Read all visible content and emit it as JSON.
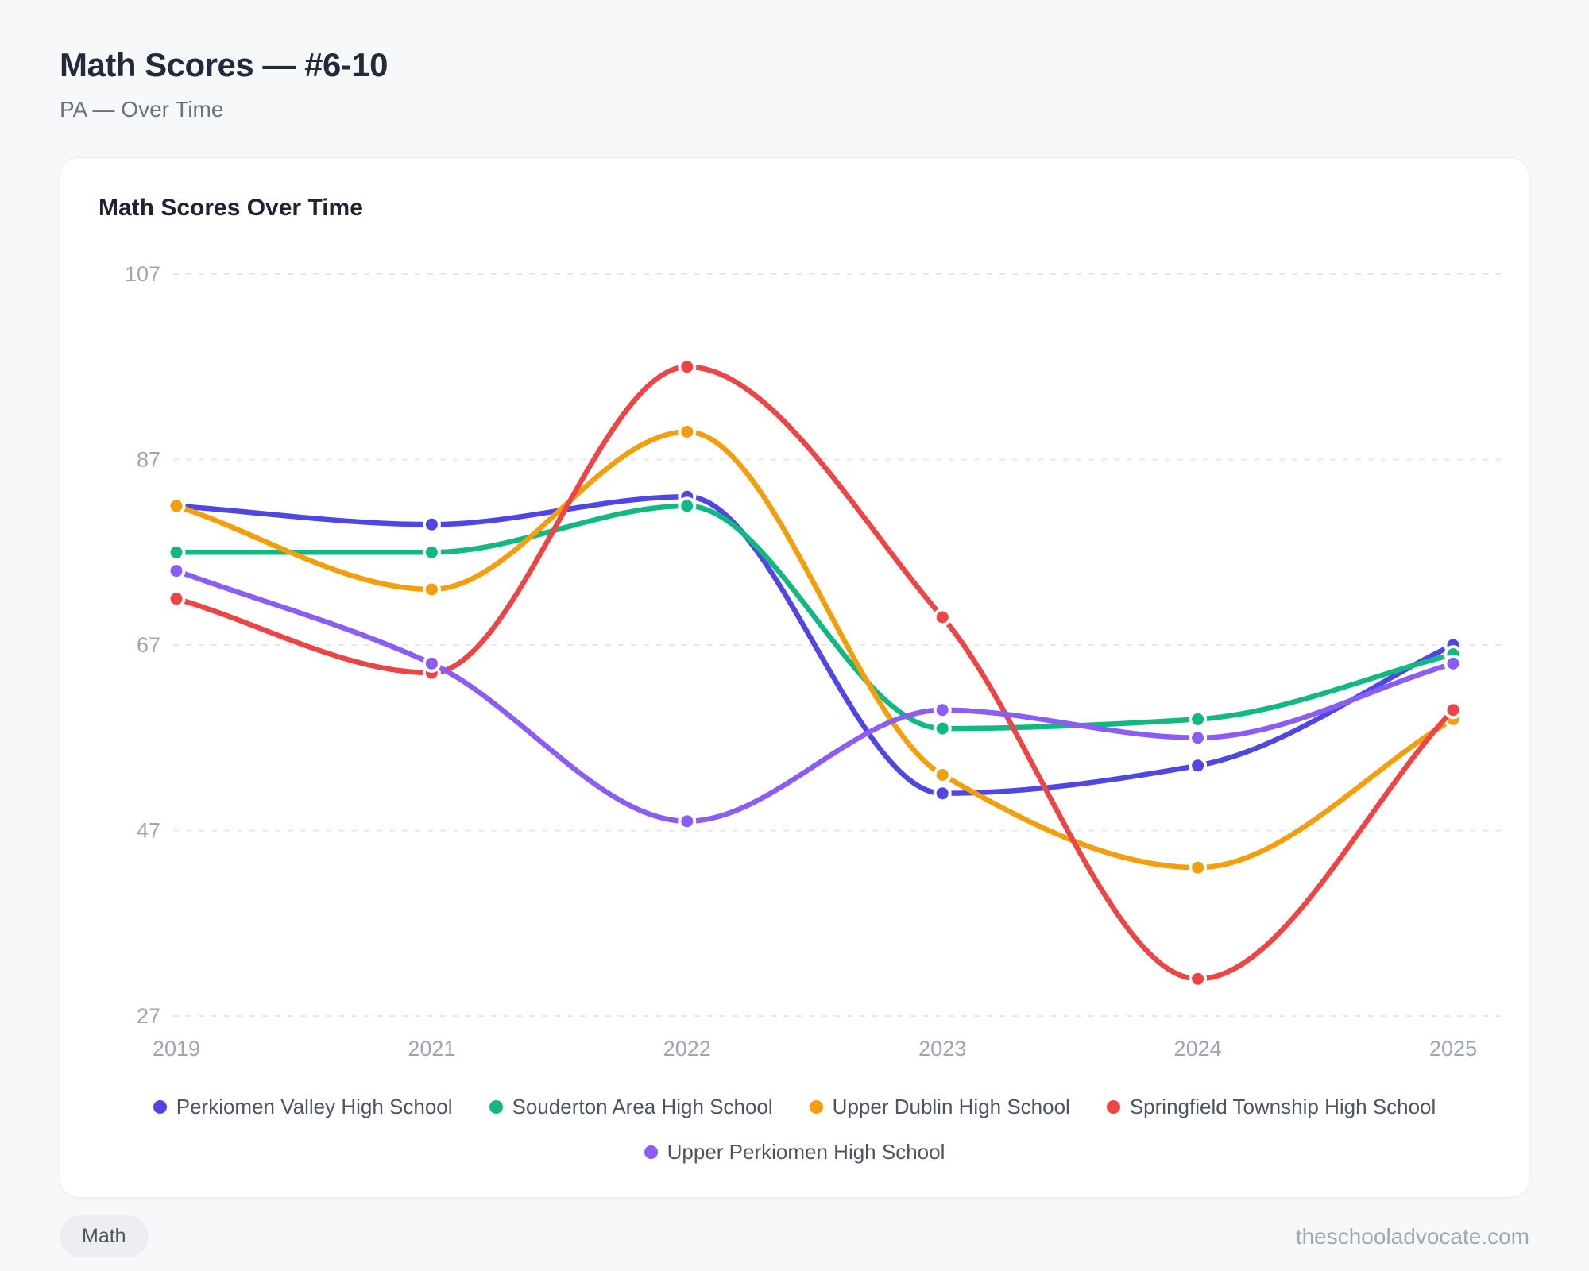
{
  "page": {
    "title": "Math Scores — #6-10",
    "subtitle": "PA — Over Time",
    "footer": {
      "tag": "Math",
      "website": "theschooladvocate.com"
    }
  },
  "chart_data": {
    "type": "line",
    "title": "Math Scores Over Time",
    "x": [
      "2019",
      "2021",
      "2022",
      "2023",
      "2024",
      "2025"
    ],
    "series": [
      {
        "name": "Perkiomen Valley High School",
        "color": "#4f46e5",
        "values": [
          82,
          80,
          83,
          51,
          54,
          67
        ]
      },
      {
        "name": "Souderton Area High School",
        "color": "#10b981",
        "values": [
          77,
          77,
          82,
          58,
          59,
          66
        ]
      },
      {
        "name": "Upper Dublin High School",
        "color": "#f59e0b",
        "values": [
          82,
          73,
          90,
          53,
          43,
          59
        ]
      },
      {
        "name": "Springfield Township High School",
        "color": "#ef4444",
        "values": [
          72,
          64,
          97,
          70,
          31,
          60
        ]
      },
      {
        "name": "Upper Perkiomen High School",
        "color": "#8b5cf6",
        "values": [
          75,
          65,
          48,
          60,
          57,
          65
        ]
      }
    ],
    "yticks": [
      27,
      47,
      67,
      87,
      107
    ],
    "ylim": [
      27,
      107
    ],
    "grid": "dashed-horizontal",
    "legend_position": "bottom",
    "curve": "monotone",
    "point_style": "filled-circle-white-border"
  }
}
